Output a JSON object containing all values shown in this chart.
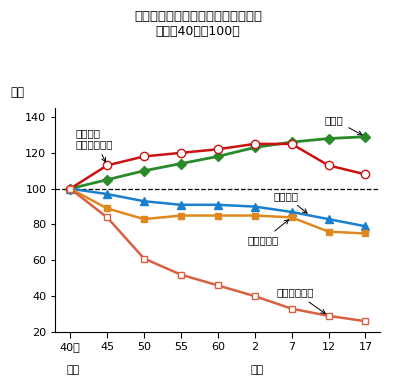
{
  "title_line1": "我が国の総人口と農業生産等の推移",
  "title_line2": "（昭和40年＝100）",
  "ylabel": "指数",
  "x_positions": [
    0,
    1,
    2,
    3,
    4,
    5,
    6,
    7,
    8
  ],
  "ylim": [
    20,
    145
  ],
  "yticks": [
    20,
    40,
    60,
    80,
    100,
    120,
    140
  ],
  "series": {
    "総人口": {
      "values": [
        100,
        105,
        110,
        114,
        118,
        123,
        126,
        128,
        129
      ],
      "color": "#2a8a2a",
      "marker": "D",
      "markersize": 5,
      "markerfacecolor": "#2a8a2a",
      "linewidth": 2.0
    },
    "農業生産": {
      "values": [
        100,
        113,
        118,
        120,
        122,
        125,
        125,
        113,
        108
      ],
      "color": "#cc1111",
      "marker": "o",
      "markersize": 6,
      "markerfacecolor": "white",
      "linewidth": 1.8
    },
    "耕地面積": {
      "values": [
        100,
        97,
        93,
        91,
        91,
        90,
        87,
        83,
        79
      ],
      "color": "#1a7fcc",
      "marker": "^",
      "markersize": 6,
      "markerfacecolor": "#1a7fcc",
      "linewidth": 1.8
    },
    "耕地利用率": {
      "values": [
        100,
        89,
        83,
        85,
        85,
        85,
        84,
        76,
        75
      ],
      "color": "#e08820",
      "marker": "s",
      "markersize": 5,
      "markerfacecolor": "#e08820",
      "linewidth": 1.8
    },
    "農業就業者数": {
      "values": [
        100,
        84,
        61,
        52,
        46,
        40,
        33,
        29,
        26
      ],
      "color": "#d96040",
      "marker": "s",
      "markersize": 5,
      "markerfacecolor": "white",
      "linewidth": 1.8
    }
  },
  "background_color": "#ffffff",
  "annotation_fontsize": 7.5
}
